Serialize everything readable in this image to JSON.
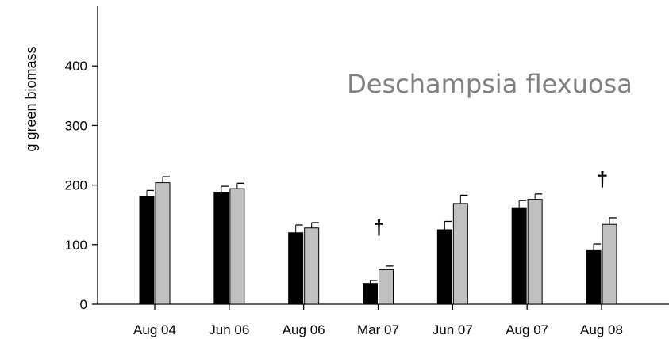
{
  "chart_data": {
    "type": "bar",
    "title": "",
    "annotation": "Deschampsia flexuosa",
    "ylabel": "g green biomass",
    "xlabel": "",
    "ylim": [
      0,
      500
    ],
    "yticks": [
      "0",
      "100",
      "200",
      "300",
      "400"
    ],
    "categories": [
      "Aug 04",
      "Jun 06",
      "Aug 06",
      "Mar 07",
      "Jun 07",
      "Aug 07",
      "Aug 08"
    ],
    "series": [
      {
        "color": "#000000",
        "values": [
          181,
          187,
          120,
          35,
          125,
          162,
          90
        ],
        "errors": [
          10,
          11,
          13,
          5,
          14,
          12,
          11
        ]
      },
      {
        "color": "#c0c0c0",
        "values": [
          204,
          194,
          128,
          58,
          169,
          176,
          134
        ],
        "errors": [
          10,
          9,
          9,
          6,
          14,
          9,
          11
        ]
      }
    ],
    "markers": [
      {
        "category": "Mar 07",
        "symbol": "†"
      },
      {
        "category": "Aug 08",
        "symbol": "†"
      }
    ],
    "grid": false,
    "legend": "none"
  }
}
